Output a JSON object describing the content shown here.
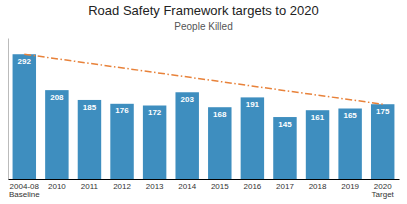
{
  "chart_data": {
    "type": "bar",
    "title": "Road Safety Framework targets to 2020",
    "subtitle": "People Killed",
    "categories": [
      "2004-08\nBaseline",
      "2010",
      "2011",
      "2012",
      "2013",
      "2014",
      "2015",
      "2016",
      "2017",
      "2018",
      "2019",
      "2020\nTarget"
    ],
    "values": [
      292,
      208,
      185,
      176,
      172,
      203,
      168,
      191,
      145,
      161,
      165,
      175
    ],
    "color": "#3E8EBF",
    "target_line": {
      "values": [
        292,
        175
      ],
      "color": "#E8823A",
      "line_style": "dashdot"
    },
    "ylim": [
      0,
      330
    ],
    "data_labels": true,
    "tick_labels": "x"
  }
}
